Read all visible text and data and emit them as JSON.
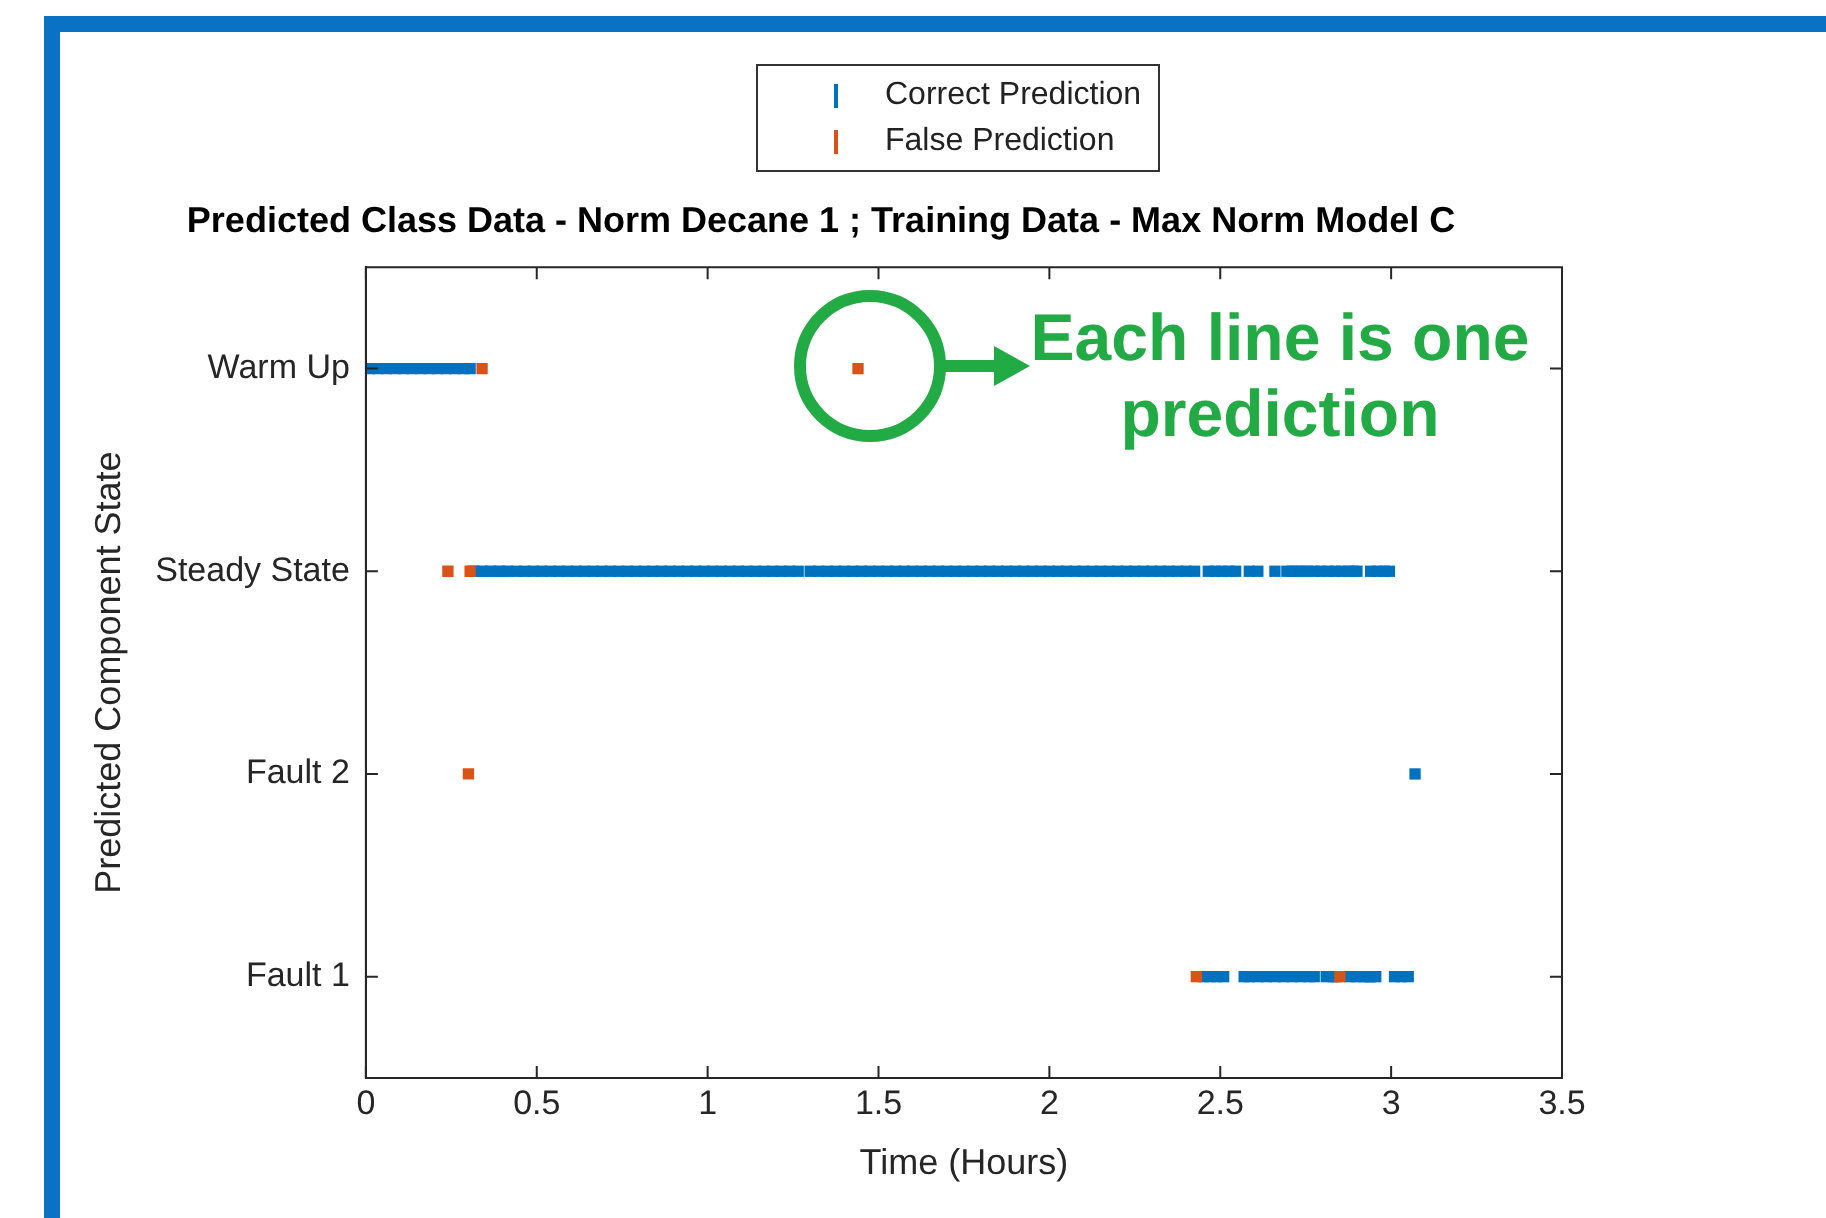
{
  "chart_data": {
    "type": "scatter",
    "orientation": "horizontal",
    "title": "Predicted Class Data - Norm Decane 1 ; Training Data - Max Norm Model C",
    "xlabel": "Time (Hours)",
    "ylabel": "Predicted Component State",
    "xlim": [
      0,
      3.5
    ],
    "xticks": [
      0,
      0.5,
      1,
      1.5,
      2,
      2.5,
      3,
      3.5
    ],
    "categories": [
      "Warm Up",
      "Steady State",
      "Fault 2",
      "Fault 1"
    ],
    "grid": false,
    "legend": "top",
    "annotations": [
      "Each line is one prediction"
    ],
    "series": [
      {
        "name": "Correct Prediction",
        "color": "#0072bd",
        "values": [
          0.01,
          0.035,
          0.06,
          0.085,
          0.11,
          0.135,
          0.16,
          0.185,
          0.21,
          0.235,
          0.26,
          0.285,
          0.305,
          0.315,
          0.34,
          0.365,
          0.39,
          0.415,
          0.44,
          0.465,
          0.49,
          0.515,
          0.54,
          0.565,
          0.59,
          0.615,
          0.64,
          0.665,
          0.69,
          0.715,
          0.74,
          0.765,
          0.79,
          0.815,
          0.84,
          0.865,
          0.89,
          0.915,
          0.94,
          0.965,
          0.99,
          1.015,
          1.04,
          1.065,
          1.09,
          1.115,
          1.14,
          1.165,
          1.19,
          1.215,
          1.24,
          1.265,
          1.3,
          1.325,
          1.35,
          1.375,
          1.4,
          1.425,
          1.45,
          1.475,
          1.5,
          1.525,
          1.55,
          1.575,
          1.6,
          1.625,
          1.65,
          1.675,
          1.7,
          1.725,
          1.75,
          1.775,
          1.8,
          1.825,
          1.85,
          1.875,
          1.9,
          1.925,
          1.95,
          1.975,
          2.0,
          2.025,
          2.05,
          2.075,
          2.1,
          2.125,
          2.15,
          2.175,
          2.2,
          2.225,
          2.25,
          2.275,
          2.3,
          2.325,
          2.35,
          2.375,
          2.4,
          2.425,
          2.465,
          2.485,
          2.505,
          2.525,
          2.545,
          2.585,
          2.61,
          2.66,
          2.695,
          2.71,
          2.725,
          2.74,
          2.755,
          2.775,
          2.795,
          2.815,
          2.835,
          2.855,
          2.875,
          2.89,
          2.9,
          2.94,
          2.96,
          2.98,
          2.995,
          3.07,
          2.45,
          2.47,
          2.49,
          2.51,
          2.57,
          2.585,
          2.61,
          2.635,
          2.66,
          2.685,
          2.71,
          2.735,
          2.76,
          2.775,
          2.81,
          2.83,
          2.84,
          2.88,
          2.9,
          2.92,
          2.935,
          2.94,
          2.955,
          3.01,
          3.03,
          3.05
        ],
        "x": [
          "Warm Up",
          "Warm Up",
          "Warm Up",
          "Warm Up",
          "Warm Up",
          "Warm Up",
          "Warm Up",
          "Warm Up",
          "Warm Up",
          "Warm Up",
          "Warm Up",
          "Warm Up",
          "Warm Up",
          "Steady State",
          "Steady State",
          "Steady State",
          "Steady State",
          "Steady State",
          "Steady State",
          "Steady State",
          "Steady State",
          "Steady State",
          "Steady State",
          "Steady State",
          "Steady State",
          "Steady State",
          "Steady State",
          "Steady State",
          "Steady State",
          "Steady State",
          "Steady State",
          "Steady State",
          "Steady State",
          "Steady State",
          "Steady State",
          "Steady State",
          "Steady State",
          "Steady State",
          "Steady State",
          "Steady State",
          "Steady State",
          "Steady State",
          "Steady State",
          "Steady State",
          "Steady State",
          "Steady State",
          "Steady State",
          "Steady State",
          "Steady State",
          "Steady State",
          "Steady State",
          "Steady State",
          "Steady State",
          "Steady State",
          "Steady State",
          "Steady State",
          "Steady State",
          "Steady State",
          "Steady State",
          "Steady State",
          "Steady State",
          "Steady State",
          "Steady State",
          "Steady State",
          "Steady State",
          "Steady State",
          "Steady State",
          "Steady State",
          "Steady State",
          "Steady State",
          "Steady State",
          "Steady State",
          "Steady State",
          "Steady State",
          "Steady State",
          "Steady State",
          "Steady State",
          "Steady State",
          "Steady State",
          "Steady State",
          "Steady State",
          "Steady State",
          "Steady State",
          "Steady State",
          "Steady State",
          "Steady State",
          "Steady State",
          "Steady State",
          "Steady State",
          "Steady State",
          "Steady State",
          "Steady State",
          "Steady State",
          "Steady State",
          "Steady State",
          "Steady State",
          "Steady State",
          "Steady State",
          "Steady State",
          "Steady State",
          "Steady State",
          "Steady State",
          "Steady State",
          "Steady State",
          "Steady State",
          "Steady State",
          "Steady State",
          "Steady State",
          "Steady State",
          "Steady State",
          "Steady State",
          "Steady State",
          "Steady State",
          "Steady State",
          "Steady State",
          "Steady State",
          "Steady State",
          "Steady State",
          "Steady State",
          "Steady State",
          "Steady State",
          "Steady State",
          "Steady State",
          "Fault 2",
          "Fault 1",
          "Fault 1",
          "Fault 1",
          "Fault 1",
          "Fault 1",
          "Fault 1",
          "Fault 1",
          "Fault 1",
          "Fault 1",
          "Fault 1",
          "Fault 1",
          "Fault 1",
          "Fault 1",
          "Fault 1",
          "Fault 1",
          "Fault 1",
          "Fault 1",
          "Fault 1",
          "Fault 1",
          "Fault 1",
          "Fault 1",
          "Fault 1",
          "Fault 1",
          "Fault 1",
          "Fault 1",
          "Fault 1"
        ]
      },
      {
        "name": "False Prediction",
        "color": "#d95319",
        "values": [
          0.34,
          1.44,
          0.24,
          0.305,
          0.3,
          2.43,
          2.85
        ],
        "x": [
          "Warm Up",
          "Warm Up",
          "Steady State",
          "Steady State",
          "Fault 2",
          "Fault 1",
          "Fault 1"
        ]
      }
    ]
  }
}
